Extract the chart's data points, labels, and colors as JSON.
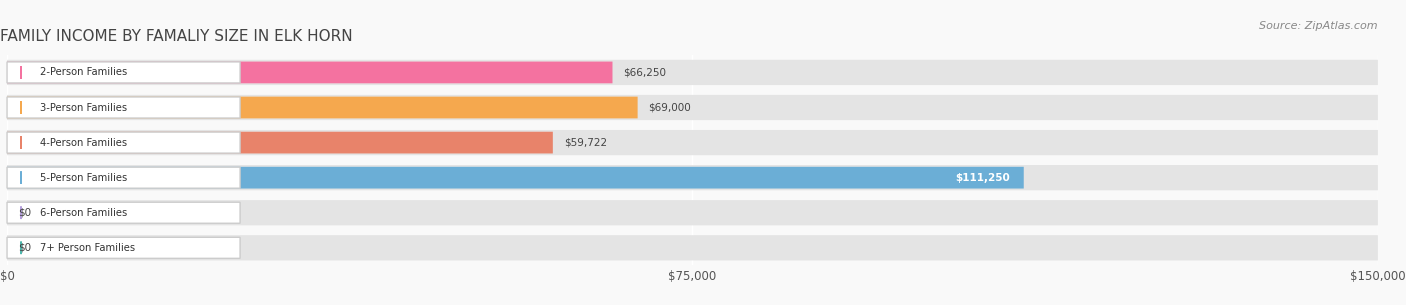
{
  "title": "FAMILY INCOME BY FAMALIY SIZE IN ELK HORN",
  "source": "Source: ZipAtlas.com",
  "categories": [
    "2-Person Families",
    "3-Person Families",
    "4-Person Families",
    "5-Person Families",
    "6-Person Families",
    "7+ Person Families"
  ],
  "values": [
    66250,
    69000,
    59722,
    111250,
    0,
    0
  ],
  "bar_colors": [
    "#f472a0",
    "#f5a84e",
    "#e8836a",
    "#6baed6",
    "#b39ddb",
    "#4db6ac"
  ],
  "bar_bg_color": "#e8e8e8",
  "xlim": [
    0,
    150000
  ],
  "xticks": [
    0,
    75000,
    150000
  ],
  "xtick_labels": [
    "$0",
    "$75,000",
    "$150,000"
  ],
  "value_labels": [
    "$66,250",
    "$69,000",
    "$59,722",
    "$111,250",
    "$0",
    "$0"
  ],
  "label_inside": [
    false,
    false,
    false,
    true,
    false,
    false
  ],
  "bg_color": "#f9f9f9",
  "bar_row_bg": "#eeeeee",
  "title_fontsize": 11,
  "source_fontsize": 8,
  "tick_fontsize": 8.5
}
